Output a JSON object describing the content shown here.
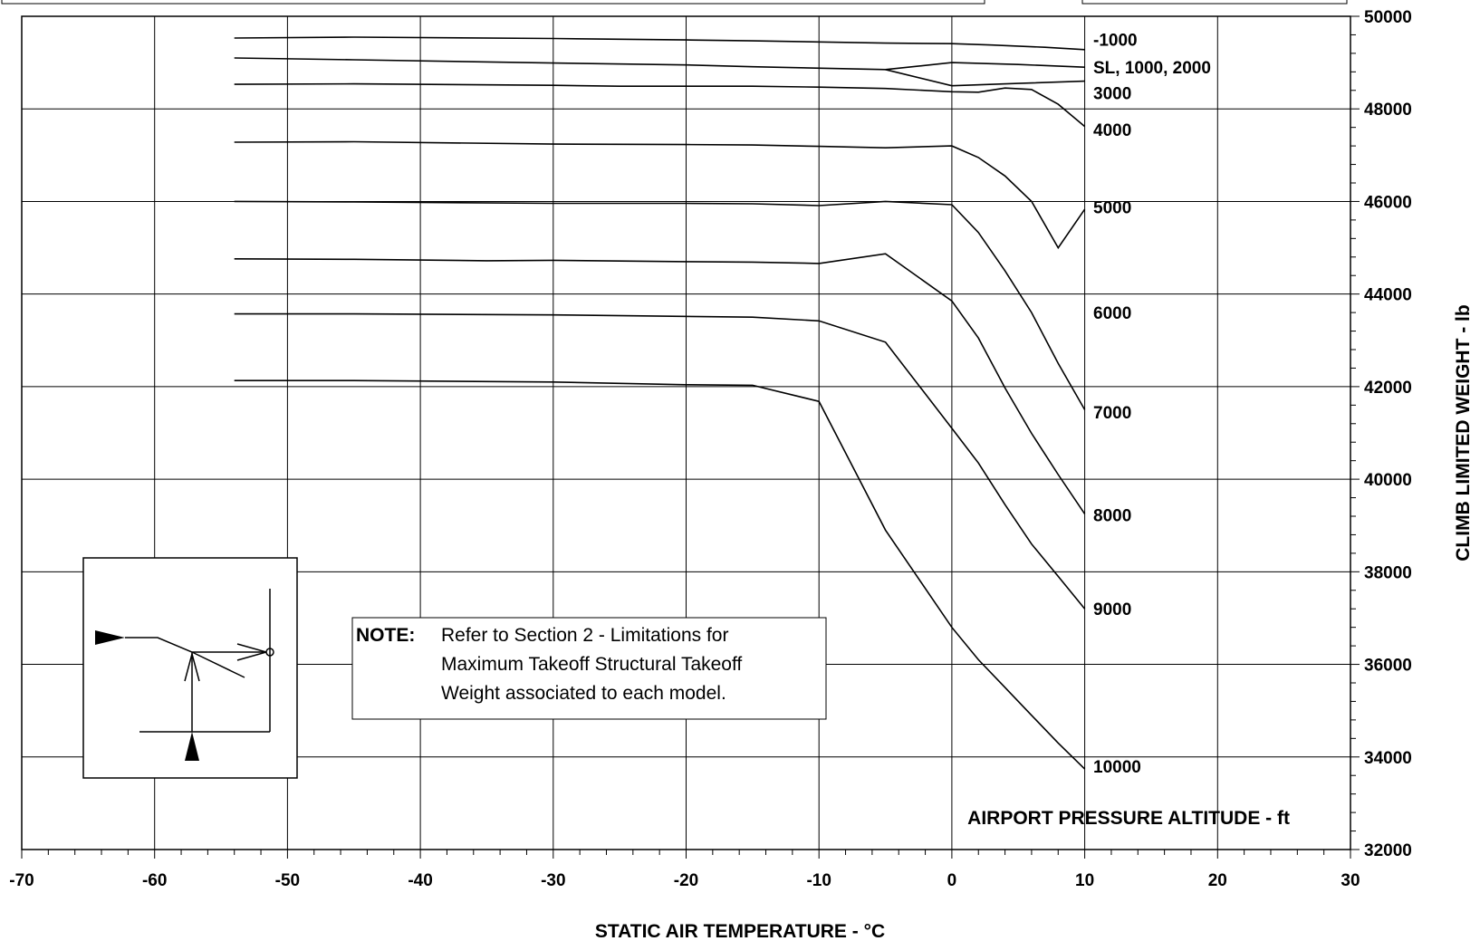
{
  "chart_data": {
    "type": "line",
    "title": "",
    "xlabel": "STATIC AIR TEMPERATURE - °C",
    "ylabel": "CLIMB LIMITED WEIGHT - lb",
    "xlim": [
      -70,
      30
    ],
    "ylim": [
      32000,
      50000
    ],
    "x_ticks": [
      -70,
      -60,
      -50,
      -40,
      -30,
      -20,
      -10,
      0,
      10,
      20,
      30
    ],
    "y_ticks": [
      32000,
      34000,
      36000,
      38000,
      40000,
      42000,
      44000,
      46000,
      48000,
      50000
    ],
    "grid": true,
    "legend_title": "AIRPORT PRESSURE ALTITUDE - ft",
    "note_heading": "NOTE:",
    "note_lines": [
      "Refer to Section 2 - Limitations for",
      "Maximum Takeoff Structural Takeoff",
      "Weight associated to each model."
    ],
    "series": [
      {
        "name": "-1000",
        "label_y": 49500,
        "points": [
          [
            -54,
            49530
          ],
          [
            -45,
            49550
          ],
          [
            -30,
            49520
          ],
          [
            -20,
            49490
          ],
          [
            -15,
            49470
          ],
          [
            -5,
            49420
          ],
          [
            0,
            49410
          ],
          [
            3,
            49380
          ],
          [
            7,
            49330
          ],
          [
            10,
            49280
          ]
        ]
      },
      {
        "name": "SL, 1000, 2000",
        "label_y": 48900,
        "points": [
          [
            -54,
            49100
          ],
          [
            -45,
            49060
          ],
          [
            -30,
            48990
          ],
          [
            -20,
            48950
          ],
          [
            -15,
            48910
          ],
          [
            -5,
            48850
          ],
          [
            0,
            49000
          ],
          [
            5,
            48960
          ],
          [
            10,
            48900
          ]
        ]
      },
      {
        "name": "",
        "label_y": null,
        "points": [
          [
            -5,
            48850
          ],
          [
            0,
            48500
          ],
          [
            5,
            48550
          ],
          [
            10,
            48600
          ]
        ]
      },
      {
        "name": "3000",
        "label_y": 48350,
        "points": [
          [
            -54,
            48530
          ],
          [
            -45,
            48540
          ],
          [
            -30,
            48510
          ],
          [
            -25,
            48490
          ],
          [
            -15,
            48490
          ],
          [
            -10,
            48470
          ],
          [
            -5,
            48440
          ],
          [
            0,
            48370
          ],
          [
            2,
            48360
          ],
          [
            4,
            48450
          ],
          [
            6,
            48420
          ],
          [
            8,
            48100
          ],
          [
            10,
            47620
          ]
        ]
      },
      {
        "name": "4000",
        "label_y": 47550,
        "points": [
          [
            -54,
            47280
          ],
          [
            -45,
            47290
          ],
          [
            -30,
            47240
          ],
          [
            -20,
            47230
          ],
          [
            -15,
            47220
          ],
          [
            -10,
            47190
          ],
          [
            -5,
            47160
          ],
          [
            0,
            47200
          ],
          [
            2,
            46950
          ],
          [
            4,
            46550
          ],
          [
            6,
            46000
          ],
          [
            8,
            45000
          ],
          [
            10,
            45830
          ]
        ]
      },
      {
        "name": "5000",
        "label_y": 45880,
        "points": [
          [
            -54,
            46000
          ],
          [
            -45,
            45990
          ],
          [
            -30,
            45960
          ],
          [
            -20,
            45960
          ],
          [
            -15,
            45950
          ],
          [
            -10,
            45910
          ],
          [
            -5,
            46000
          ],
          [
            0,
            45930
          ],
          [
            2,
            45330
          ],
          [
            4,
            44500
          ],
          [
            6,
            43600
          ],
          [
            8,
            42500
          ],
          [
            10,
            41500
          ]
        ]
      },
      {
        "name": "6000",
        "label_y": 43600,
        "points": [
          [
            -54,
            44760
          ],
          [
            -45,
            44750
          ],
          [
            -35,
            44720
          ],
          [
            -30,
            44730
          ],
          [
            -20,
            44700
          ],
          [
            -15,
            44690
          ],
          [
            -10,
            44660
          ],
          [
            -5,
            44870
          ],
          [
            0,
            43850
          ],
          [
            2,
            43050
          ],
          [
            4,
            41970
          ],
          [
            6,
            40990
          ],
          [
            8,
            40100
          ],
          [
            10,
            39250
          ]
        ]
      },
      {
        "name": "7000",
        "label_y": 41450,
        "points": [
          [
            -54,
            43570
          ],
          [
            -45,
            43570
          ],
          [
            -30,
            43550
          ],
          [
            -15,
            43500
          ],
          [
            -10,
            43420
          ],
          [
            -5,
            42960
          ],
          [
            0,
            41100
          ],
          [
            2,
            40350
          ],
          [
            4,
            39450
          ],
          [
            6,
            38600
          ],
          [
            8,
            37900
          ],
          [
            10,
            37200
          ]
        ]
      },
      {
        "name": "8000",
        "label_y": 39230,
        "points": [
          [
            -54,
            42130
          ],
          [
            -45,
            42130
          ],
          [
            -30,
            42100
          ],
          [
            -20,
            42040
          ],
          [
            -15,
            42030
          ],
          [
            -10,
            41680
          ],
          [
            -5,
            38900
          ],
          [
            0,
            36800
          ],
          [
            2,
            36100
          ],
          [
            4,
            35500
          ],
          [
            6,
            34900
          ],
          [
            8,
            34300
          ],
          [
            10,
            33740
          ]
        ]
      },
      {
        "name": "9000",
        "label_y": 37200,
        "points": []
      },
      {
        "name": "10000",
        "label_y": 33800,
        "points": []
      }
    ]
  }
}
